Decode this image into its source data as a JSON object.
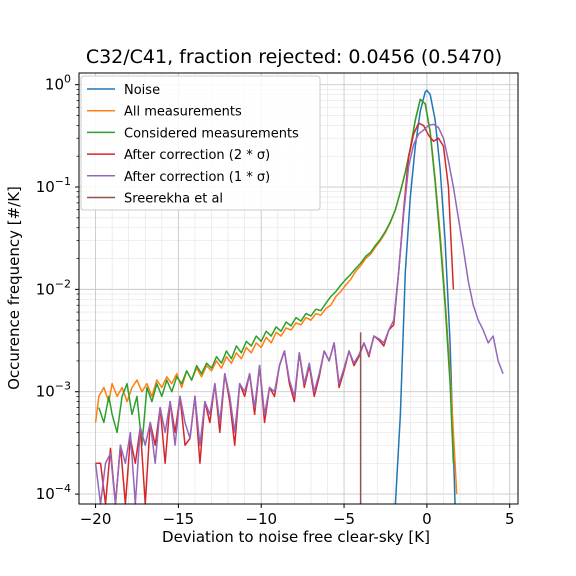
{
  "chart_data": {
    "type": "line",
    "title": "C32/C41, fraction rejected: 0.0456 (0.5470)",
    "xlabel": "Deviation to noise free clear-sky [K]",
    "ylabel": "Occurence frequency [#/K]",
    "xlim": [
      -21,
      5.5
    ],
    "ylim": [
      8e-05,
      1.3
    ],
    "yscale": "log",
    "grid": "major and minor",
    "legend_position": "upper-left",
    "x_ticks": [
      {
        "value": -20,
        "label": "−20"
      },
      {
        "value": -15,
        "label": "−15"
      },
      {
        "value": -10,
        "label": "−10"
      },
      {
        "value": -5,
        "label": "−5"
      },
      {
        "value": 0,
        "label": "0"
      },
      {
        "value": 5,
        "label": "5"
      }
    ],
    "y_ticks": [
      {
        "value": 0.0001,
        "base": "10",
        "exp": "−4"
      },
      {
        "value": 0.001,
        "base": "10",
        "exp": "−3"
      },
      {
        "value": 0.01,
        "base": "10",
        "exp": "−2"
      },
      {
        "value": 0.1,
        "base": "10",
        "exp": "−1"
      },
      {
        "value": 1,
        "base": "10",
        "exp": "0"
      }
    ],
    "series": [
      {
        "name": "Noise",
        "color": "#1f77b4",
        "x": [
          -1.9,
          -1.6,
          -1.3,
          -1.0,
          -0.7,
          -0.4,
          -0.1,
          0.0,
          0.2,
          0.5,
          0.8,
          1.1,
          1.4,
          1.7
        ],
        "y": [
          8e-05,
          0.0006,
          0.015,
          0.08,
          0.25,
          0.55,
          0.85,
          0.88,
          0.8,
          0.45,
          0.15,
          0.03,
          0.003,
          8e-05
        ]
      },
      {
        "name": "All measurements",
        "color": "#ff7f0e",
        "x": [
          -20.0,
          -19.8,
          -19.5,
          -19.2,
          -19.0,
          -18.7,
          -18.4,
          -18.1,
          -17.8,
          -17.5,
          -17.2,
          -16.9,
          -16.6,
          -16.3,
          -16.0,
          -15.7,
          -15.4,
          -15.1,
          -14.8,
          -14.5,
          -14.2,
          -13.9,
          -13.6,
          -13.3,
          -13.0,
          -12.7,
          -12.4,
          -12.1,
          -11.8,
          -11.5,
          -11.2,
          -10.9,
          -10.6,
          -10.3,
          -10.0,
          -9.7,
          -9.4,
          -9.1,
          -8.8,
          -8.5,
          -8.2,
          -7.9,
          -7.6,
          -7.3,
          -7.0,
          -6.7,
          -6.4,
          -6.1,
          -5.8,
          -5.5,
          -5.2,
          -4.9,
          -4.6,
          -4.3,
          -4.0,
          -3.7,
          -3.4,
          -3.1,
          -2.8,
          -2.5,
          -2.2,
          -1.9,
          -1.6,
          -1.3,
          -1.0,
          -0.7,
          -0.4,
          -0.1,
          0.2,
          0.5,
          0.8,
          1.1,
          1.4,
          1.6,
          1.8
        ],
        "y": [
          0.0005,
          0.0009,
          0.0011,
          0.0008,
          0.0012,
          0.0009,
          0.0011,
          0.0008,
          0.0011,
          0.0013,
          0.001,
          0.0012,
          0.0009,
          0.0013,
          0.0011,
          0.0014,
          0.0012,
          0.0015,
          0.0011,
          0.0016,
          0.0013,
          0.0017,
          0.0014,
          0.0018,
          0.0016,
          0.002,
          0.0017,
          0.0022,
          0.0019,
          0.0024,
          0.0021,
          0.0027,
          0.0024,
          0.003,
          0.0027,
          0.0034,
          0.003,
          0.0038,
          0.0035,
          0.0042,
          0.004,
          0.0047,
          0.0045,
          0.0053,
          0.005,
          0.0058,
          0.0056,
          0.0065,
          0.007,
          0.0085,
          0.0095,
          0.011,
          0.0125,
          0.015,
          0.017,
          0.02,
          0.022,
          0.026,
          0.03,
          0.036,
          0.045,
          0.06,
          0.09,
          0.14,
          0.23,
          0.45,
          0.72,
          0.65,
          0.35,
          0.12,
          0.035,
          0.008,
          0.0015,
          0.0004,
          0.0001
        ]
      },
      {
        "name": "Considered measurements",
        "color": "#2ca02c",
        "x": [
          -19.8,
          -19.5,
          -19.2,
          -19.0,
          -18.7,
          -18.4,
          -18.1,
          -17.8,
          -17.5,
          -17.2,
          -16.9,
          -16.6,
          -16.3,
          -16.0,
          -15.7,
          -15.4,
          -15.1,
          -14.8,
          -14.5,
          -14.2,
          -13.9,
          -13.6,
          -13.3,
          -13.0,
          -12.7,
          -12.4,
          -12.1,
          -11.8,
          -11.5,
          -11.2,
          -10.9,
          -10.6,
          -10.3,
          -10.0,
          -9.7,
          -9.4,
          -9.1,
          -8.8,
          -8.5,
          -8.2,
          -7.9,
          -7.6,
          -7.3,
          -7.0,
          -6.7,
          -6.4,
          -6.1,
          -5.8,
          -5.5,
          -5.2,
          -4.9,
          -4.6,
          -4.3,
          -4.0,
          -3.7,
          -3.4,
          -3.1,
          -2.8,
          -2.5,
          -2.2,
          -1.9,
          -1.6,
          -1.3,
          -1.0,
          -0.7,
          -0.4,
          -0.1,
          0.2,
          0.5,
          0.8,
          1.1,
          1.4,
          1.6
        ],
        "y": [
          0.0007,
          0.0005,
          0.0009,
          0.0006,
          0.0004,
          0.0009,
          0.0012,
          0.0006,
          0.0009,
          0.0003,
          0.0011,
          0.0008,
          0.0012,
          0.0009,
          0.0013,
          0.001,
          0.0014,
          0.0012,
          0.0016,
          0.0013,
          0.0018,
          0.0015,
          0.0019,
          0.0017,
          0.0022,
          0.0019,
          0.0025,
          0.0021,
          0.0028,
          0.0024,
          0.0031,
          0.0028,
          0.0035,
          0.0031,
          0.0039,
          0.0035,
          0.0043,
          0.0039,
          0.0048,
          0.0044,
          0.0053,
          0.0049,
          0.0058,
          0.0055,
          0.0064,
          0.0062,
          0.0073,
          0.0085,
          0.0095,
          0.011,
          0.0125,
          0.014,
          0.016,
          0.018,
          0.021,
          0.023,
          0.027,
          0.031,
          0.037,
          0.046,
          0.06,
          0.09,
          0.14,
          0.24,
          0.45,
          0.72,
          0.65,
          0.34,
          0.11,
          0.03,
          0.007,
          0.0012,
          0.0002
        ]
      },
      {
        "name": "After correction (2 * σ)",
        "color": "#d62728",
        "x": [
          -20.0,
          -19.7,
          -19.4,
          -19.1,
          -18.8,
          -18.5,
          -18.2,
          -17.9,
          -17.6,
          -17.3,
          -17.0,
          -16.7,
          -16.4,
          -16.1,
          -15.8,
          -15.5,
          -15.2,
          -14.9,
          -14.6,
          -14.3,
          -14.0,
          -13.7,
          -13.4,
          -13.1,
          -12.8,
          -12.5,
          -12.2,
          -11.9,
          -11.6,
          -11.3,
          -11.0,
          -10.7,
          -10.4,
          -10.1,
          -9.8,
          -9.5,
          -9.2,
          -8.9,
          -8.6,
          -8.3,
          -8.0,
          -7.7,
          -7.4,
          -7.1,
          -6.8,
          -6.5,
          -6.2,
          -5.9,
          -5.6,
          -5.3,
          -5.0,
          -4.7,
          -4.4,
          -4.1,
          -3.8,
          -3.5,
          -3.2,
          -2.9,
          -2.6,
          -2.3,
          -2.0,
          -1.7,
          -1.4,
          -1.1,
          -0.8,
          -0.5,
          -0.2,
          0.1,
          0.4,
          0.7,
          1.0,
          1.3,
          1.6
        ],
        "y": [
          0.0002,
          0.0002,
          8e-05,
          0.00028,
          8e-05,
          0.0003,
          8e-05,
          0.00035,
          0.0002,
          0.00045,
          8e-05,
          0.0005,
          0.0003,
          0.0007,
          0.0002,
          0.0008,
          0.0004,
          0.0009,
          0.0003,
          0.00035,
          0.0009,
          0.0002,
          0.0008,
          0.0005,
          0.0012,
          0.0004,
          0.0015,
          0.0008,
          0.0003,
          0.0012,
          0.0009,
          0.0015,
          0.0006,
          0.0018,
          0.0005,
          0.0011,
          0.0009,
          0.0018,
          0.0025,
          0.0012,
          0.0008,
          0.0024,
          0.0011,
          0.0018,
          0.0009,
          0.0014,
          0.0025,
          0.002,
          0.003,
          0.0011,
          0.0016,
          0.0025,
          0.0018,
          0.0022,
          0.003,
          0.0022,
          0.0035,
          0.0032,
          0.0028,
          0.004,
          0.0045,
          0.015,
          0.06,
          0.2,
          0.33,
          0.42,
          0.4,
          0.32,
          0.28,
          0.3,
          0.25,
          0.1,
          0.01
        ]
      },
      {
        "name": "After correction (1 * σ)",
        "color": "#9467bd",
        "x": [
          -20.0,
          -19.7,
          -19.4,
          -19.1,
          -18.8,
          -18.5,
          -18.2,
          -17.9,
          -17.6,
          -17.3,
          -17.0,
          -16.7,
          -16.4,
          -16.1,
          -15.8,
          -15.5,
          -15.2,
          -14.9,
          -14.6,
          -14.3,
          -14.0,
          -13.7,
          -13.4,
          -13.1,
          -12.8,
          -12.5,
          -12.2,
          -11.9,
          -11.6,
          -11.3,
          -11.0,
          -10.7,
          -10.4,
          -10.1,
          -9.8,
          -9.5,
          -9.2,
          -8.9,
          -8.6,
          -8.3,
          -8.0,
          -7.7,
          -7.4,
          -7.1,
          -6.8,
          -6.5,
          -6.2,
          -5.9,
          -5.6,
          -5.3,
          -5.0,
          -4.7,
          -4.4,
          -4.1,
          -3.8,
          -3.5,
          -3.2,
          -2.9,
          -2.6,
          -2.3,
          -2.0,
          -1.7,
          -1.4,
          -1.1,
          -0.8,
          -0.5,
          -0.2,
          0.1,
          0.4,
          0.7,
          1.0,
          1.3,
          1.6,
          1.9,
          2.2,
          2.5,
          2.8,
          3.1,
          3.4,
          3.7,
          4.0,
          4.3,
          4.6
        ],
        "y": [
          0.0002,
          8e-05,
          0.0002,
          0.00025,
          8e-05,
          0.0003,
          0.0002,
          0.0004,
          8e-05,
          0.00045,
          0.0003,
          0.0005,
          0.0002,
          0.0007,
          0.0004,
          0.0008,
          0.0003,
          0.0009,
          0.0005,
          0.00035,
          0.0009,
          0.0003,
          0.0008,
          0.0006,
          0.0012,
          0.0005,
          0.0015,
          0.0009,
          0.0004,
          0.0012,
          0.001,
          0.0015,
          0.0007,
          0.0018,
          0.0006,
          0.0011,
          0.001,
          0.0018,
          0.0025,
          0.0013,
          0.0009,
          0.0024,
          0.0012,
          0.0019,
          0.001,
          0.0015,
          0.0025,
          0.002,
          0.003,
          0.0012,
          0.0017,
          0.0025,
          0.0019,
          0.0023,
          0.003,
          0.0023,
          0.0035,
          0.0033,
          0.003,
          0.004,
          0.005,
          0.015,
          0.055,
          0.16,
          0.26,
          0.33,
          0.36,
          0.4,
          0.41,
          0.38,
          0.3,
          0.18,
          0.1,
          0.05,
          0.025,
          0.012,
          0.007,
          0.005,
          0.004,
          0.003,
          0.0035,
          0.002,
          0.0015
        ]
      },
      {
        "name": "Sreerekha et al",
        "color": "#8c564b",
        "x": [
          -4.0,
          -4.0
        ],
        "y": [
          8e-05,
          0.0038
        ]
      }
    ]
  }
}
